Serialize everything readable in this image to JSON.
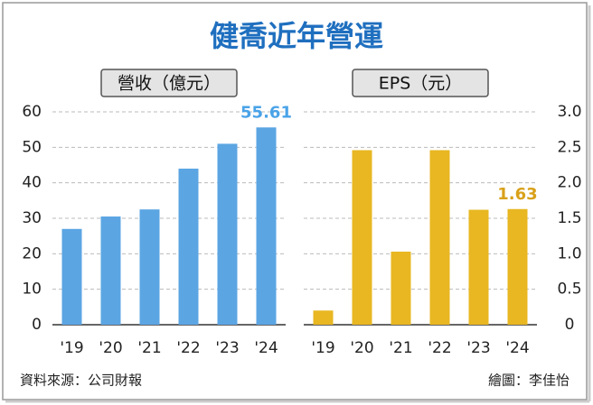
{
  "title": "健喬近年營運",
  "source": "資料來源：公司財報",
  "credit": "繪圖：李佳怡",
  "chart_data": [
    {
      "type": "bar",
      "title": "營收（億元）",
      "categories": [
        "'19",
        "'20",
        "'21",
        "'22",
        "'23",
        "'24"
      ],
      "values": [
        27,
        30.5,
        32.5,
        44,
        51,
        55.61
      ],
      "value_labels": [
        null,
        null,
        null,
        null,
        null,
        "55.61"
      ],
      "color": "#5ba5e3",
      "label_color": "#4aa3e8",
      "ylim": [
        0,
        60
      ],
      "yticks": [
        0,
        10,
        20,
        30,
        40,
        50,
        60
      ],
      "grid": true,
      "axis_side": "left"
    },
    {
      "type": "bar",
      "title": "EPS（元）",
      "categories": [
        "'19",
        "'20",
        "'21",
        "'22",
        "'23",
        "'24"
      ],
      "values": [
        0.2,
        2.46,
        1.03,
        2.46,
        1.62,
        1.63
      ],
      "value_labels": [
        null,
        null,
        null,
        null,
        null,
        "1.63"
      ],
      "color": "#e8b722",
      "label_color": "#d9a11a",
      "ylim": [
        0,
        3
      ],
      "yticks": [
        0,
        0.5,
        {
          "value": 1,
          "label": "1.0"
        },
        1.5,
        {
          "value": 2,
          "label": "2.0"
        },
        2.5,
        {
          "value": 3,
          "label": "3.0"
        }
      ],
      "grid": true,
      "axis_side": "right"
    }
  ]
}
